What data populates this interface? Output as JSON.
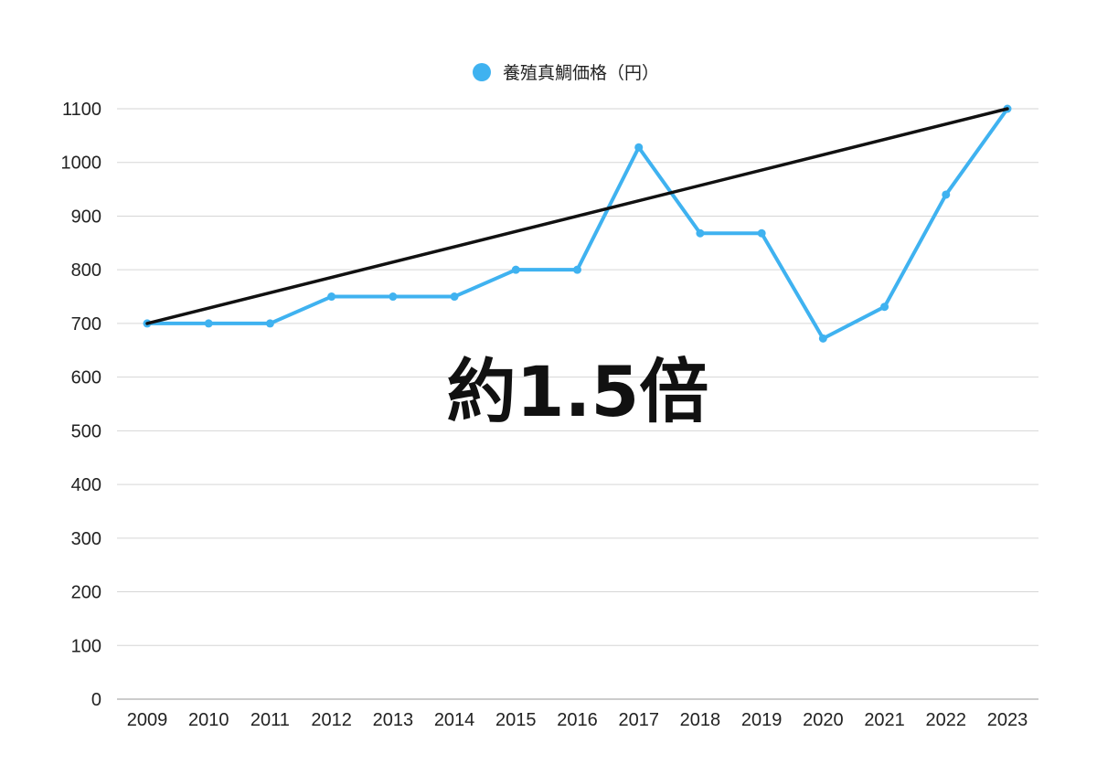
{
  "chart_data": {
    "type": "line",
    "categories": [
      "2009",
      "2010",
      "2011",
      "2012",
      "2013",
      "2014",
      "2015",
      "2016",
      "2017",
      "2018",
      "2019",
      "2020",
      "2021",
      "2022",
      "2023"
    ],
    "series": [
      {
        "name": "養殖真鯛価格（円）",
        "color": "#3fb2f0",
        "values": [
          700,
          700,
          700,
          750,
          750,
          750,
          800,
          800,
          1028,
          868,
          868,
          672,
          731,
          940,
          1100
        ]
      }
    ],
    "trend_line": {
      "from": 700,
      "to": 1100,
      "color": "#111111"
    },
    "annotation": "約1.5倍",
    "ylim": [
      0,
      1100
    ],
    "yticks": [
      0,
      100,
      200,
      300,
      400,
      500,
      600,
      700,
      800,
      900,
      1000,
      1100
    ],
    "grid": true,
    "legend_position": "top-center",
    "title": "",
    "xlabel": "",
    "ylabel": ""
  }
}
